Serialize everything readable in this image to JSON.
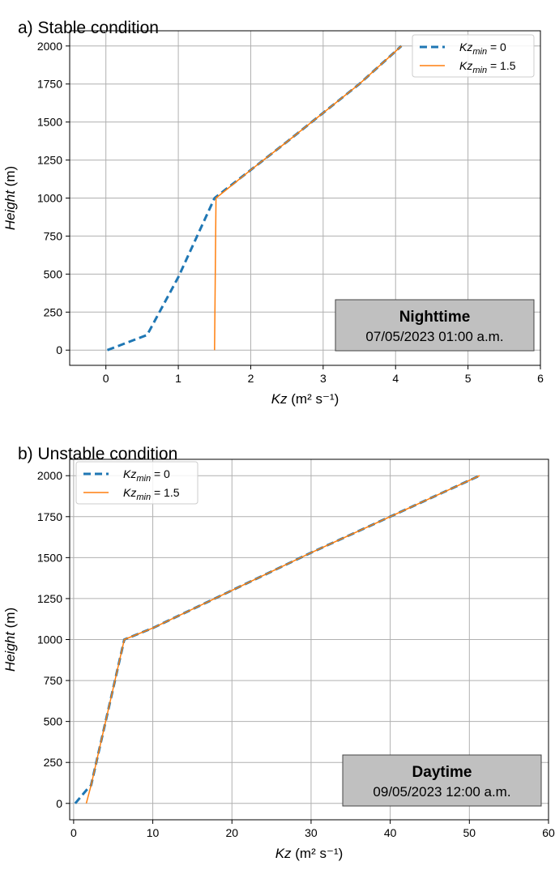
{
  "chart_data": [
    {
      "type": "line",
      "title": "a) Stable condition",
      "xlabel": "Kz (m² s⁻¹)",
      "ylabel": "Height (m)",
      "xlim": [
        -0.5,
        6
      ],
      "ylim": [
        -100,
        2100
      ],
      "xticks": [
        0,
        1,
        2,
        3,
        4,
        5,
        6
      ],
      "yticks": [
        0,
        250,
        500,
        750,
        1000,
        1250,
        1500,
        1750,
        2000
      ],
      "grid": true,
      "legend_position": "top-right",
      "series": [
        {
          "name": "Kz_min = 0",
          "name_main": "Kz",
          "name_sub": "min",
          "name_tail": " = 0",
          "color": "#1f77b4",
          "style": "dashed",
          "x": [
            0.02,
            0.57,
            1.0,
            1.5,
            2.0,
            2.5,
            3.0,
            3.5,
            4.08
          ],
          "y": [
            0,
            100,
            480,
            1000,
            1185,
            1370,
            1560,
            1750,
            2000
          ]
        },
        {
          "name": "Kz_min = 1.5",
          "name_main": "Kz",
          "name_sub": "min",
          "name_tail": " = 1.5",
          "color": "#ff7f0e",
          "style": "solid",
          "x": [
            1.5,
            1.52,
            2.0,
            2.5,
            3.0,
            3.5,
            4.08
          ],
          "y": [
            0,
            1000,
            1185,
            1370,
            1560,
            1750,
            2000
          ]
        }
      ],
      "annotation": {
        "title": "Nighttime",
        "subtitle": "07/05/2023 01:00 a.m.",
        "position": "bottom-right",
        "background": "#c0c0c0"
      }
    },
    {
      "type": "line",
      "title": "b) Unstable condition",
      "xlabel": "Kz (m² s⁻¹)",
      "ylabel": "Height (m)",
      "xlim": [
        -0.5,
        60
      ],
      "ylim": [
        -100,
        2100
      ],
      "xticks": [
        0,
        10,
        20,
        30,
        40,
        50,
        60
      ],
      "yticks": [
        0,
        250,
        500,
        750,
        1000,
        1250,
        1500,
        1750,
        2000
      ],
      "grid": true,
      "legend_position": "top-left",
      "series": [
        {
          "name": "Kz_min = 0",
          "name_main": "Kz",
          "name_sub": "min",
          "name_tail": " = 0",
          "color": "#1f77b4",
          "style": "dashed",
          "x": [
            0.2,
            1.6,
            2.2,
            6.4,
            10,
            20,
            30,
            40,
            51.3
          ],
          "y": [
            0,
            80,
            110,
            1000,
            1070,
            1300,
            1530,
            1750,
            2000
          ]
        },
        {
          "name": "Kz_min = 1.5",
          "name_main": "Kz",
          "name_sub": "min",
          "name_tail": " = 1.5",
          "color": "#ff7f0e",
          "style": "solid",
          "x": [
            1.6,
            2.2,
            6.4,
            10,
            20,
            30,
            40,
            51.3
          ],
          "y": [
            0,
            110,
            1000,
            1070,
            1300,
            1530,
            1750,
            2000
          ]
        }
      ],
      "annotation": {
        "title": "Daytime",
        "subtitle": "09/05/2023 12:00 a.m.",
        "position": "bottom-right",
        "background": "#c0c0c0"
      }
    }
  ]
}
